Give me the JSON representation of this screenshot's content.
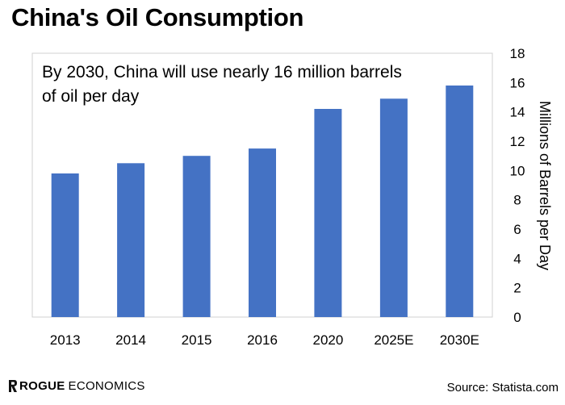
{
  "header": {
    "title": "China's Oil Consumption"
  },
  "chart_data": {
    "type": "bar",
    "title": "China's Oil Consumption",
    "annotation": "By 2030, China will use nearly 16 million barrels of oil per day",
    "annotation_lines": [
      "By 2030, China will use nearly 16 million barrels",
      "of oil per day"
    ],
    "categories": [
      "2013",
      "2014",
      "2015",
      "2016",
      "2020",
      "2025E",
      "2030E"
    ],
    "values": [
      9.8,
      10.5,
      11.0,
      11.5,
      14.2,
      14.9,
      15.8
    ],
    "xlabel": "",
    "ylabel": "Millions of Barrels per Day",
    "ylim": [
      0,
      18
    ],
    "yticks": [
      0,
      2,
      4,
      6,
      8,
      10,
      12,
      14,
      16,
      18
    ],
    "y_axis_side": "right",
    "grid": false,
    "legend": "none",
    "bar_color": "#4472C4",
    "frame_color": "#d0d0d0"
  },
  "footer": {
    "brand_bold": "ROGUE",
    "brand_light": "ECONOMICS",
    "source": "Source: Statista.com"
  }
}
